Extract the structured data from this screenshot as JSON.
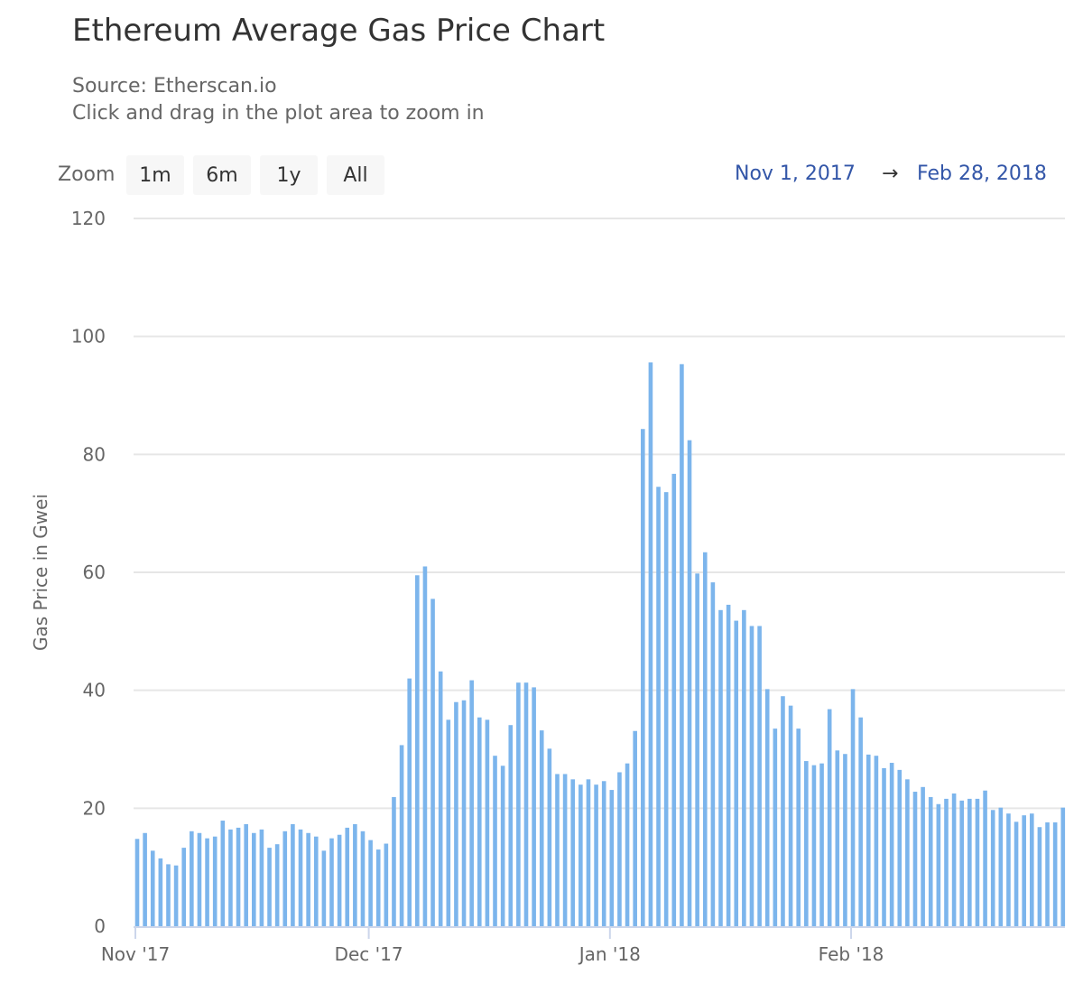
{
  "chart_data": {
    "type": "bar",
    "title": "Ethereum Average Gas Price Chart",
    "subtitle": [
      "Source: Etherscan.io",
      "Click and drag in the plot area to zoom in"
    ],
    "ylabel": "Gas Price in Gwei",
    "xlabel": "",
    "ylim": [
      0,
      120
    ],
    "yticks": [
      0,
      20,
      40,
      60,
      80,
      100,
      120
    ],
    "xticks": [
      {
        "date": "2017-11-01",
        "label": "Nov '17"
      },
      {
        "date": "2017-12-01",
        "label": "Dec '17"
      },
      {
        "date": "2018-01-01",
        "label": "Jan '18"
      },
      {
        "date": "2018-02-01",
        "label": "Feb '18"
      }
    ],
    "grid": true,
    "color": "#7cb5ec",
    "x_start": "2017-11-01",
    "x_end": "2018-02-28",
    "values": [
      14.8,
      15.8,
      12.8,
      11.5,
      10.5,
      10.3,
      13.3,
      16.1,
      15.8,
      14.9,
      15.2,
      17.9,
      16.4,
      16.7,
      17.3,
      15.8,
      16.4,
      13.3,
      13.9,
      16.1,
      17.3,
      16.4,
      15.8,
      15.2,
      12.8,
      14.9,
      15.5,
      16.7,
      17.3,
      16.1,
      14.6,
      13.0,
      14.0,
      21.9,
      30.7,
      42.0,
      59.5,
      61.0,
      55.5,
      43.2,
      35.0,
      38.0,
      38.3,
      41.7,
      35.4,
      35.0,
      28.9,
      27.2,
      34.1,
      41.3,
      41.3,
      40.5,
      33.2,
      30.1,
      25.8,
      25.8,
      24.9,
      24.0,
      24.9,
      24.0,
      24.6,
      23.1,
      26.1,
      27.6,
      33.1,
      84.3,
      95.6,
      74.5,
      73.6,
      76.7,
      95.3,
      82.4,
      59.8,
      63.4,
      58.3,
      53.6,
      54.5,
      51.8,
      53.6,
      50.9,
      50.9,
      40.2,
      33.5,
      39.0,
      37.4,
      33.5,
      28.0,
      27.3,
      27.6,
      36.8,
      29.8,
      29.2,
      40.2,
      35.4,
      29.1,
      28.9,
      26.8,
      27.7,
      26.5,
      24.9,
      22.8,
      23.6,
      21.9,
      20.7,
      21.6,
      22.5,
      21.3,
      21.6,
      21.6,
      23.0,
      19.7,
      20.1,
      19.1,
      17.7,
      18.8,
      19.1,
      16.8,
      17.6,
      17.6,
      20.1
    ]
  },
  "zoom": {
    "label": "Zoom",
    "buttons": [
      "1m",
      "6m",
      "1y",
      "All"
    ]
  },
  "range": {
    "from": "Nov 1, 2017",
    "arrow": "→",
    "to": "Feb 28, 2018"
  }
}
